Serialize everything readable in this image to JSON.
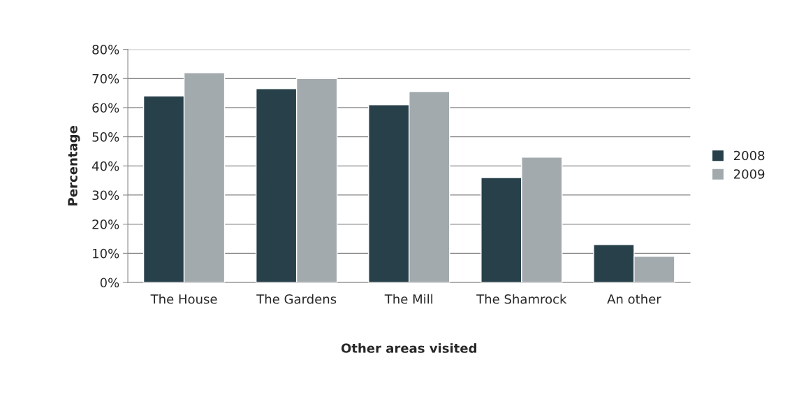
{
  "chart_data": {
    "type": "bar",
    "xlabel": "Other areas visited",
    "ylabel": "Percentage",
    "categories": [
      "The House",
      "The Gardens",
      "The Mill",
      "The Shamrock",
      "An other"
    ],
    "series": [
      {
        "name": "2008",
        "color": "#27404a",
        "values": [
          64,
          66.5,
          61,
          36,
          13
        ]
      },
      {
        "name": "2009",
        "color": "#a2aaad",
        "values": [
          72,
          70,
          65.5,
          43,
          9
        ]
      }
    ],
    "ylim": [
      0,
      80
    ],
    "yticks": [
      {
        "value": 0,
        "label": "0%"
      },
      {
        "value": 10,
        "label": "10%"
      },
      {
        "value": 20,
        "label": "20%"
      },
      {
        "value": 30,
        "label": "30%"
      },
      {
        "value": 40,
        "label": "40%"
      },
      {
        "value": 50,
        "label": "50%"
      },
      {
        "value": 60,
        "label": "60%"
      },
      {
        "value": 70,
        "label": "70%"
      },
      {
        "value": 80,
        "label": "80%"
      }
    ],
    "grid": "y",
    "legend": "right"
  }
}
